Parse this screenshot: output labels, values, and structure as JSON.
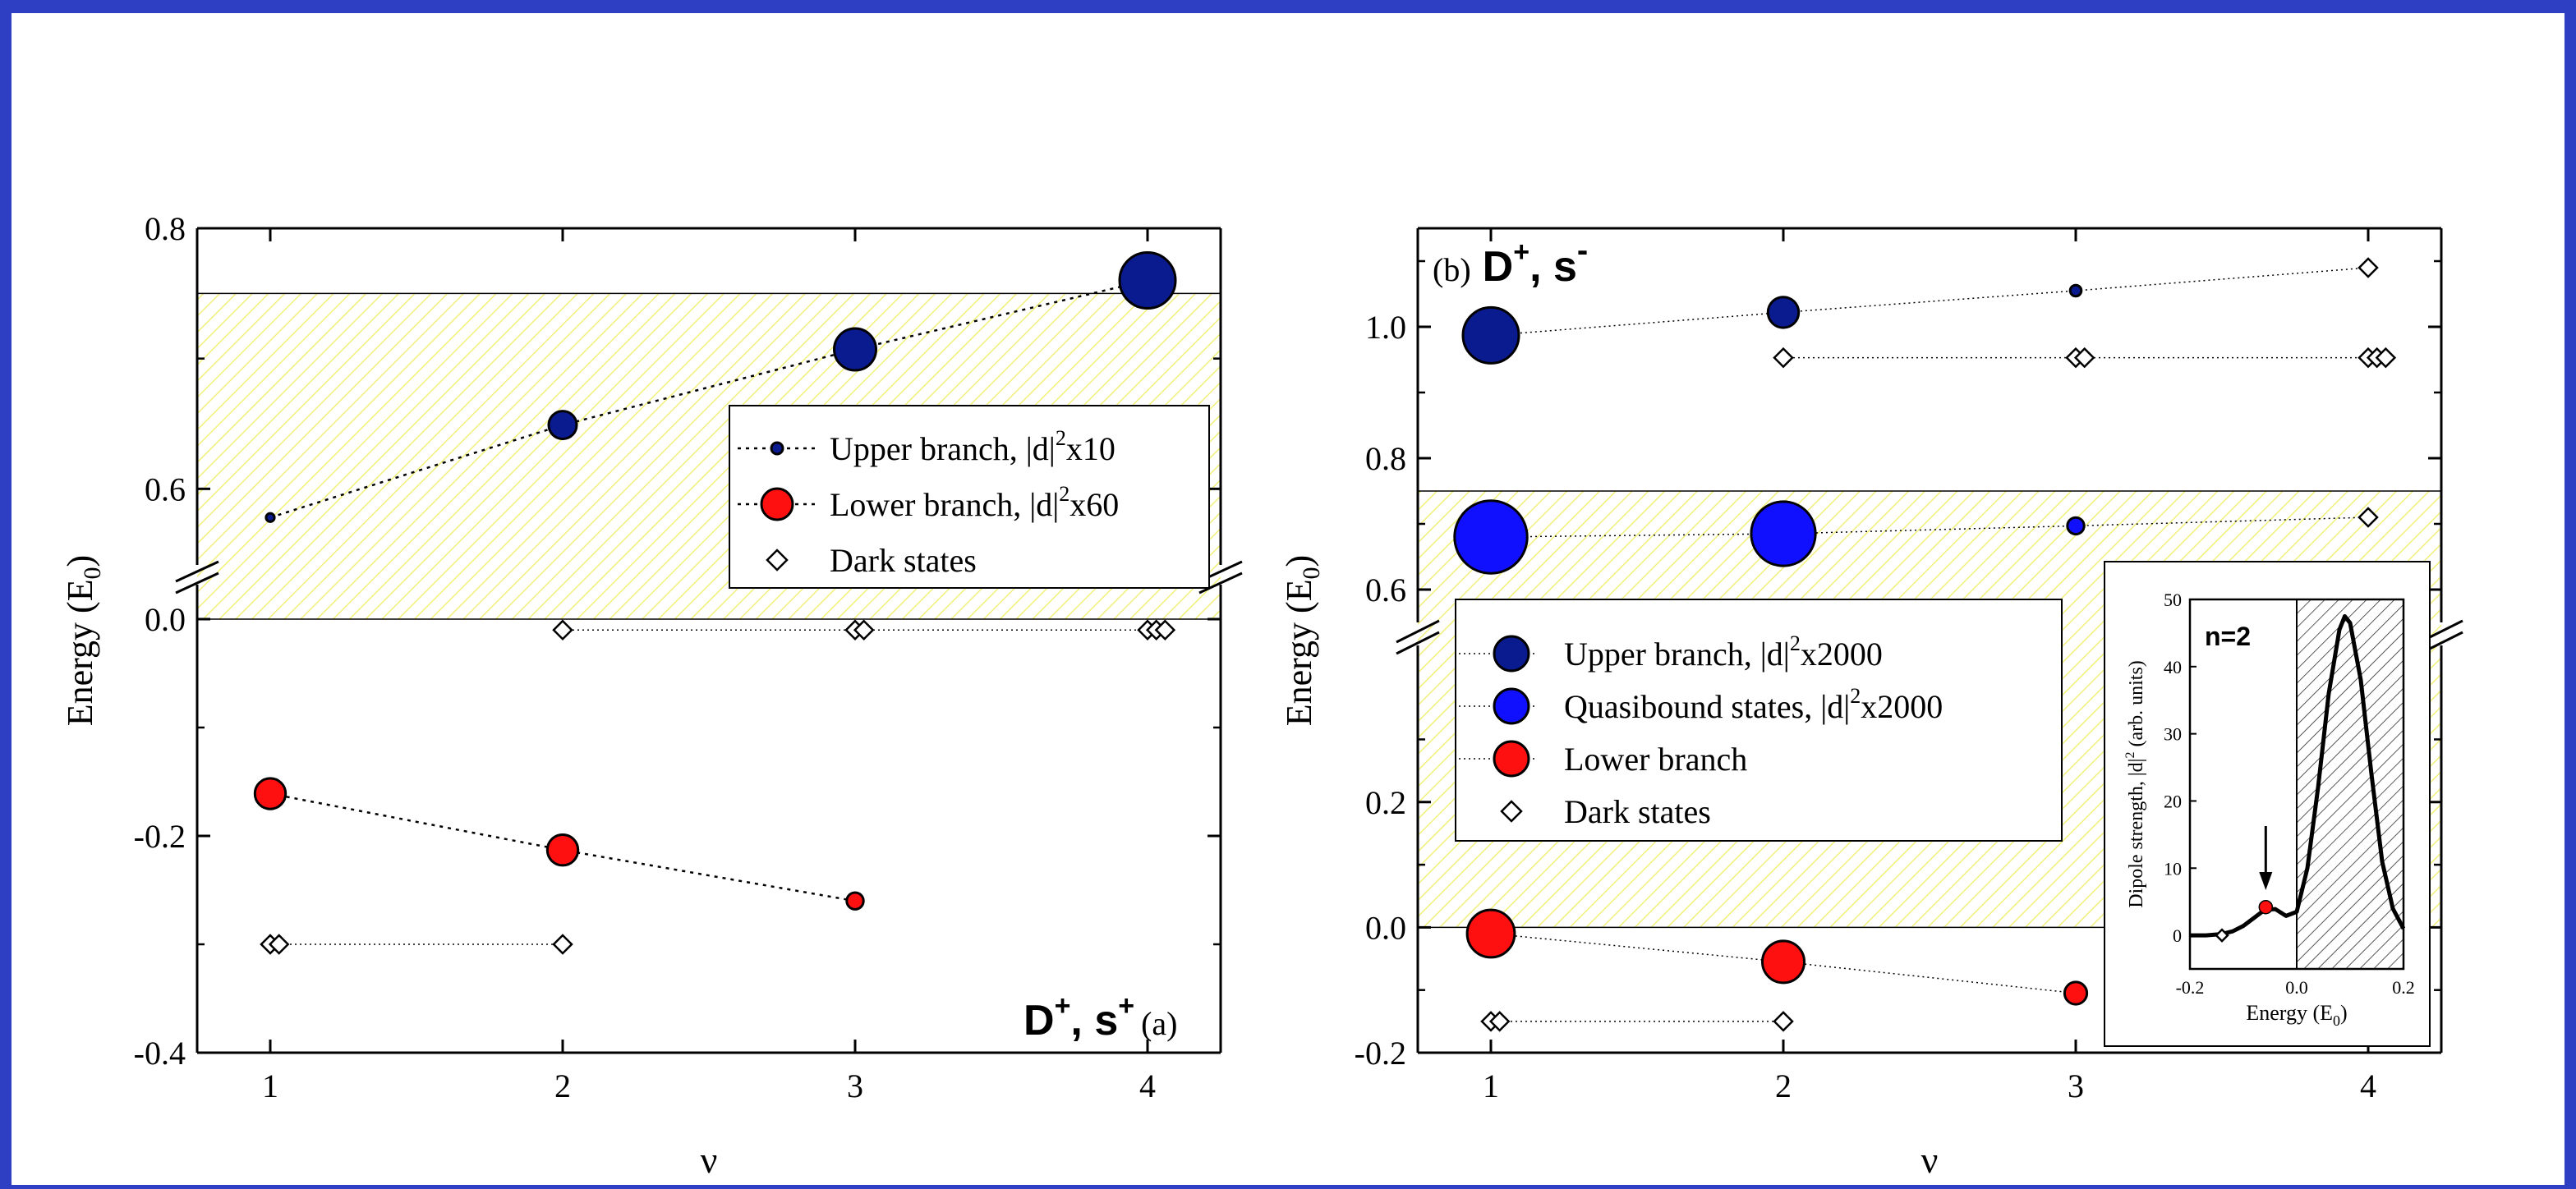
{
  "chart_data": [
    {
      "id": "a",
      "type": "scatter",
      "panel_label": "(a)",
      "state_label": "D",
      "state_label_sup": "+",
      "state_pol": "s",
      "state_pol_sup": "+",
      "xlabel": "ν",
      "ylabel": "Energy (E",
      "ylabel_sub": "0",
      "ylabel_close": ")",
      "xlim": [
        0.75,
        4.25
      ],
      "xticks": [
        "1",
        "2",
        "3",
        "4"
      ],
      "ylim_lower": [
        -0.4,
        0.0
      ],
      "ylim_upper": [
        0.5,
        0.8
      ],
      "axis_break": true,
      "yticks": [
        "-0.4",
        "-0.2",
        "0.0",
        "0.6",
        "0.8"
      ],
      "continuum_band": [
        0.0,
        0.75
      ],
      "band_color": "#f2f07a",
      "legend": {
        "placement": "top-right",
        "entries": [
          {
            "label": "Upper branch, |d|",
            "sup": "2",
            "suffix": "x10",
            "marker": "circle-small",
            "color": "#0a1a8f"
          },
          {
            "label": "Lower branch, |d|",
            "sup": "2",
            "suffix": "x60",
            "marker": "circle",
            "color": "#ff1010"
          },
          {
            "label": "Dark states",
            "sup": "",
            "suffix": "",
            "marker": "diamond",
            "color": "#ffffff"
          }
        ]
      },
      "series": [
        {
          "name": "Upper branch",
          "color": "#0a1a8f",
          "x": [
            1,
            2,
            3,
            4
          ],
          "y": [
            0.578,
            0.649,
            0.707,
            0.76
          ],
          "size": [
            0.15,
            0.5,
            0.75,
            1.0
          ]
        },
        {
          "name": "Lower branch",
          "color": "#ff1010",
          "x": [
            1,
            2,
            3
          ],
          "y": [
            -0.161,
            -0.213,
            -0.26
          ],
          "size": [
            0.55,
            0.55,
            0.3
          ]
        },
        {
          "name": "Dark states",
          "x": [
            1,
            1.03,
            2,
            3,
            3.03,
            4,
            4.03,
            4.06
          ],
          "y": [
            -0.3,
            -0.3,
            -0.3,
            -0.3,
            -0.3,
            -0.3,
            -0.3,
            -0.3
          ],
          "dark_rows": [
            [
              1,
              1.03,
              2
            ],
            [
              2,
              3,
              3.03,
              4,
              4.03,
              4.06
            ]
          ],
          "dark_y": [
            -0.3,
            -0.02
          ]
        }
      ]
    },
    {
      "id": "b",
      "type": "scatter",
      "panel_label": "(b)",
      "state_label": "D",
      "state_label_sup": "+",
      "state_pol": "s",
      "state_pol_sup": "-",
      "xlabel": "ν",
      "ylabel": "Energy (E",
      "ylabel_sub": "0",
      "ylabel_close": ")",
      "xlim": [
        0.75,
        4.25
      ],
      "xticks": [
        "1",
        "2",
        "3",
        "4"
      ],
      "ylim_lower": [
        -0.2,
        0.45
      ],
      "ylim_upper": [
        0.55,
        1.15
      ],
      "axis_break": true,
      "yticks": [
        "-0.2",
        "0.0",
        "0.2",
        "0.6",
        "0.8",
        "1.0"
      ],
      "continuum_band": [
        0.0,
        0.75
      ],
      "legend": {
        "placement": "left",
        "entries": [
          {
            "label": "Upper branch, |d|",
            "sup": "2",
            "suffix": "x2000",
            "marker": "circle",
            "color": "#0a1a8f"
          },
          {
            "label": "Quasibound states, |d|",
            "sup": "2",
            "suffix": "x2000",
            "marker": "circle",
            "color": "#1010ff"
          },
          {
            "label": "Lower branch",
            "sup": "",
            "suffix": "",
            "marker": "circle",
            "color": "#ff1010"
          },
          {
            "label": "Dark states",
            "sup": "",
            "suffix": "",
            "marker": "diamond",
            "color": "#ffffff"
          }
        ]
      },
      "series": [
        {
          "name": "Upper branch",
          "color": "#0a1a8f",
          "x": [
            1,
            2,
            3
          ],
          "y": [
            0.987,
            1.022,
            1.055
          ],
          "size": [
            1.0,
            0.55,
            0.2
          ]
        },
        {
          "name": "Quasibound states",
          "color": "#1010ff",
          "x": [
            1,
            2,
            3
          ],
          "y": [
            0.68,
            0.685,
            0.697
          ],
          "size": [
            1.3,
            1.15,
            0.3
          ]
        },
        {
          "name": "Lower branch",
          "color": "#ff1010",
          "x": [
            1,
            2,
            3
          ],
          "y": [
            -0.01,
            -0.055,
            -0.105
          ],
          "size": [
            0.85,
            0.75,
            0.4
          ]
        },
        {
          "name": "Dark states",
          "x": [
            4,
            1,
            1.03,
            2,
            2,
            3,
            3.03,
            4,
            4.03,
            4.06
          ],
          "y": [
            1.09,
            -0.15,
            -0.15,
            -0.15,
            0.953,
            0.953,
            0.953,
            0.953,
            0.953,
            0.953
          ],
          "extra": [
            [
              4,
              0.71
            ]
          ]
        }
      ],
      "inset": {
        "type": "line",
        "label": "n=2",
        "xlabel": "Energy (E",
        "xlabel_sub": "0",
        "xlabel_close": ")",
        "ylabel": "Dipole strength, |d|",
        "ylabel_sup": "2",
        "ylabel_tail": " (arb. units)",
        "xlim": [
          -0.2,
          0.2
        ],
        "ylim": [
          -5,
          50
        ],
        "xticks": [
          "-0.2",
          "0.0",
          "0.2"
        ],
        "yticks": [
          "0",
          "10",
          "20",
          "30",
          "40",
          "50"
        ],
        "x": [
          -0.2,
          -0.17,
          -0.14,
          -0.12,
          -0.1,
          -0.08,
          -0.06,
          -0.04,
          -0.02,
          0.0,
          0.02,
          0.04,
          0.06,
          0.08,
          0.09,
          0.1,
          0.12,
          0.14,
          0.16,
          0.18,
          0.2
        ],
        "y": [
          0,
          0,
          0.2,
          0.6,
          1.4,
          2.6,
          3.8,
          3.9,
          2.9,
          3.5,
          10,
          22,
          36,
          45.5,
          47.5,
          46.5,
          38,
          24,
          11,
          4,
          1
        ],
        "markers": [
          {
            "x": -0.14,
            "y": 0,
            "kind": "diamond"
          },
          {
            "x": -0.058,
            "y": 4.2,
            "kind": "red-dot"
          }
        ],
        "arrow_x": -0.058
      }
    }
  ]
}
